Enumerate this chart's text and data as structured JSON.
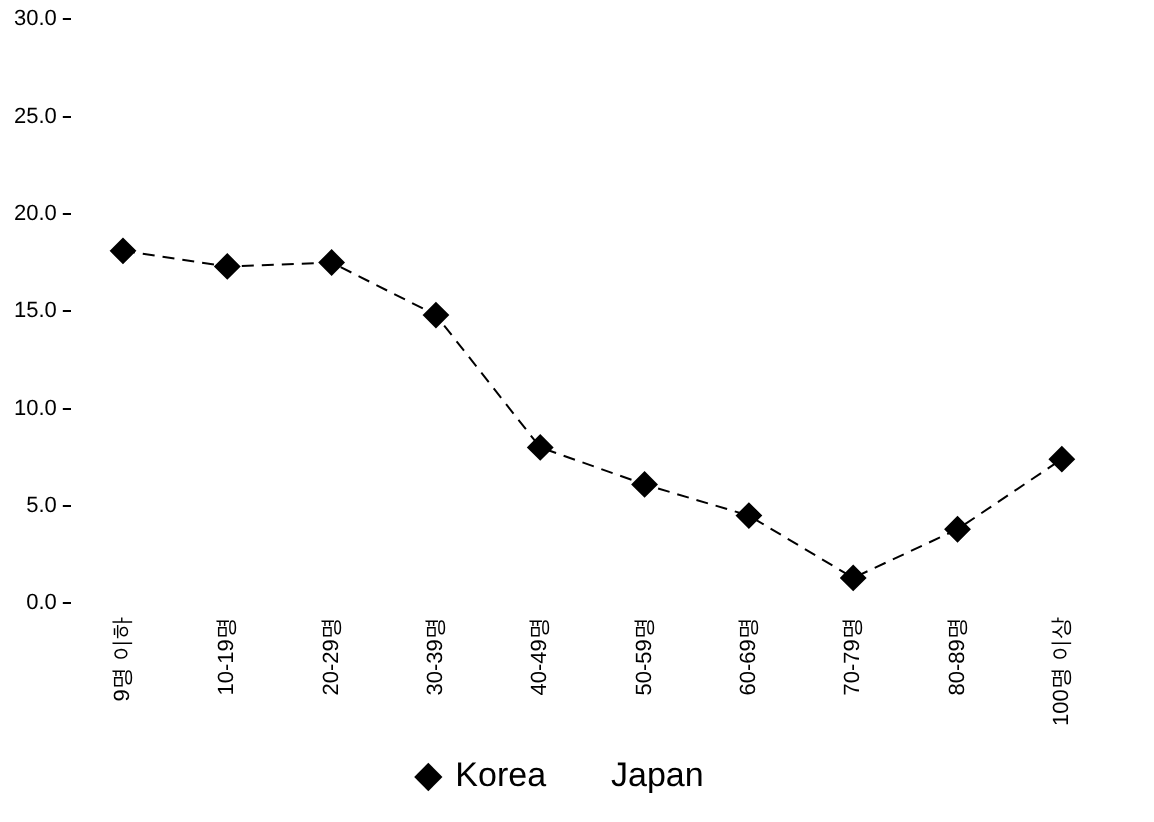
{
  "chart_data": {
    "type": "line",
    "categories": [
      "9명 이하",
      "10-19명",
      "20-29명",
      "30-39명",
      "40-49명",
      "50-59명",
      "60-69명",
      "70-79명",
      "80-89명",
      "100명 이상"
    ],
    "series": [
      {
        "name": "Korea",
        "color": "#000000",
        "values": [
          18.1,
          17.3,
          17.5,
          14.8,
          8.0,
          6.1,
          4.5,
          1.3,
          3.8,
          7.4
        ]
      },
      {
        "name": "Japan",
        "values": [
          null,
          null,
          null,
          null,
          null,
          null,
          null,
          null,
          null,
          null
        ]
      }
    ],
    "ylim": [
      0,
      30
    ],
    "yticks": [
      {
        "value": 0,
        "label": "0.0"
      },
      {
        "value": 5,
        "label": "5.0"
      },
      {
        "value": 10,
        "label": "10.0"
      },
      {
        "value": 15,
        "label": "15.0"
      },
      {
        "value": 20,
        "label": "20.0"
      },
      {
        "value": 25,
        "label": "25.0"
      },
      {
        "value": 30,
        "label": "30.0"
      }
    ],
    "grid": false,
    "legend": "bottom",
    "marker": "diamond",
    "line_style": "dashed"
  }
}
